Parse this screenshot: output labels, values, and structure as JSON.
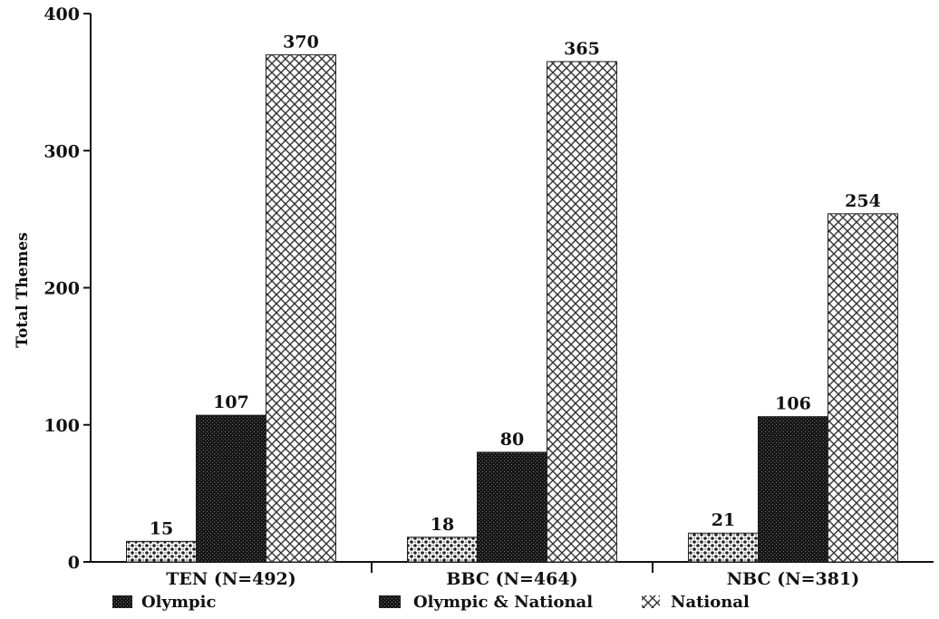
{
  "chart_data": {
    "type": "bar",
    "ylabel": "Total Themes",
    "ylim": [
      0,
      400
    ],
    "yticks": [
      0,
      100,
      200,
      300,
      400
    ],
    "grid": false,
    "legend_position": "bottom",
    "categories": [
      "TEN (N=492)",
      "BBC (N=464)",
      "NBC (N=381)"
    ],
    "series": [
      {
        "name": "Olympic",
        "values": [
          15,
          18,
          21
        ],
        "color": "#3a3a3a"
      },
      {
        "name": "Olympic & National",
        "values": [
          107,
          80,
          106
        ],
        "color": "#111111"
      },
      {
        "name": "National",
        "values": [
          370,
          365,
          254
        ],
        "color": "#9a9a9a"
      }
    ]
  }
}
